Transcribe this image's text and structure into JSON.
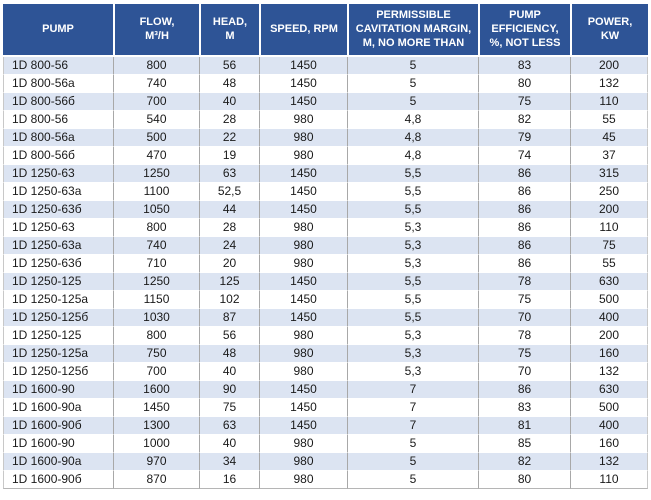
{
  "colors": {
    "header_bg": "#2e5496",
    "stripe_bg": "#dce4f2",
    "header_text": "#ffffff",
    "body_text": "#1a1a1a"
  },
  "table": {
    "columns": [
      {
        "id": "pump",
        "label": "PUMP"
      },
      {
        "id": "flow",
        "label": "FLOW,\nM³/H"
      },
      {
        "id": "head",
        "label": "HEAD,\nM"
      },
      {
        "id": "speed",
        "label": "SPEED, RPM"
      },
      {
        "id": "cavitation-margin",
        "label": "PERMISSIBLE\nCAVITATION MARGIN,\nM, NO MORE THAN"
      },
      {
        "id": "efficiency",
        "label": "PUMP\nEFFICIENCY,\n%, NOT LESS"
      },
      {
        "id": "power",
        "label": "POWER,\nKW"
      }
    ],
    "rows": [
      [
        "1D 800-56",
        "800",
        "56",
        "1450",
        "5",
        "83",
        "200"
      ],
      [
        "1D 800-56a",
        "740",
        "48",
        "1450",
        "5",
        "80",
        "132"
      ],
      [
        "1D 800-56б",
        "700",
        "40",
        "1450",
        "5",
        "75",
        "110"
      ],
      [
        "1D 800-56",
        "540",
        "28",
        "980",
        "4,8",
        "82",
        "55"
      ],
      [
        "1D 800-56a",
        "500",
        "22",
        "980",
        "4,8",
        "79",
        "45"
      ],
      [
        "1D 800-56б",
        "470",
        "19",
        "980",
        "4,8",
        "74",
        "37"
      ],
      [
        "1D 1250-63",
        "1250",
        "63",
        "1450",
        "5,5",
        "86",
        "315"
      ],
      [
        "1D 1250-63a",
        "1100",
        "52,5",
        "1450",
        "5,5",
        "86",
        "250"
      ],
      [
        "1D 1250-63б",
        "1050",
        "44",
        "1450",
        "5,5",
        "86",
        "200"
      ],
      [
        "1D 1250-63",
        "800",
        "28",
        "980",
        "5,3",
        "86",
        "110"
      ],
      [
        "1D 1250-63a",
        "740",
        "24",
        "980",
        "5,3",
        "86",
        "75"
      ],
      [
        "1D 1250-63б",
        "710",
        "20",
        "980",
        "5,3",
        "86",
        "55"
      ],
      [
        "1D 1250-125",
        "1250",
        "125",
        "1450",
        "5,5",
        "78",
        "630"
      ],
      [
        "1D 1250-125a",
        "1150",
        "102",
        "1450",
        "5,5",
        "75",
        "500"
      ],
      [
        "1D 1250-125б",
        "1030",
        "87",
        "1450",
        "5,5",
        "70",
        "400"
      ],
      [
        "1D 1250-125",
        "800",
        "56",
        "980",
        "5,3",
        "78",
        "200"
      ],
      [
        "1D 1250-125a",
        "750",
        "48",
        "980",
        "5,3",
        "75",
        "160"
      ],
      [
        "1D 1250-125б",
        "700",
        "40",
        "980",
        "5,3",
        "70",
        "132"
      ],
      [
        "1D 1600-90",
        "1600",
        "90",
        "1450",
        "7",
        "86",
        "630"
      ],
      [
        "1D 1600-90a",
        "1450",
        "75",
        "1450",
        "7",
        "83",
        "500"
      ],
      [
        "1D 1600-90б",
        "1300",
        "63",
        "1450",
        "7",
        "81",
        "400"
      ],
      [
        "1D 1600-90",
        "1000",
        "40",
        "980",
        "5",
        "85",
        "160"
      ],
      [
        "1D 1600-90a",
        "970",
        "34",
        "980",
        "5",
        "82",
        "132"
      ],
      [
        "1D 1600-90б",
        "870",
        "16",
        "980",
        "5",
        "80",
        "110"
      ]
    ]
  }
}
